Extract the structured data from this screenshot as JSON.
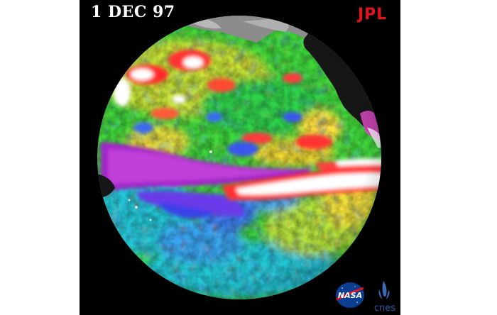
{
  "image": {
    "date_label": "1 DEC 97",
    "logos": {
      "jpl": "JPL",
      "nasa": "NASA",
      "cnes": "cnes"
    },
    "colors": {
      "background": "#000000",
      "page": "#ffffff",
      "jpl_red": "#e3141b",
      "nasa_blue": "#0b3d91",
      "cnes_blue": "#2a5ca8",
      "land": "#9a9a9a",
      "land_dark": "#1a1a1a"
    }
  }
}
